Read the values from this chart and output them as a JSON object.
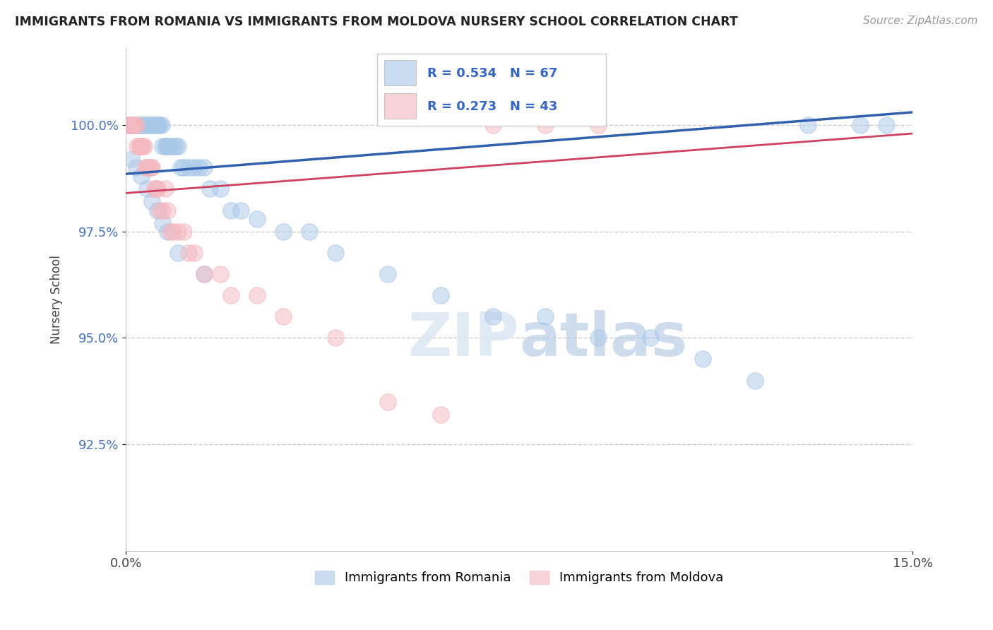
{
  "title": "IMMIGRANTS FROM ROMANIA VS IMMIGRANTS FROM MOLDOVA NURSERY SCHOOL CORRELATION CHART",
  "source": "Source: ZipAtlas.com",
  "ylabel": "Nursery School",
  "xlim": [
    0.0,
    15.0
  ],
  "ylim": [
    90.0,
    101.8
  ],
  "yticks": [
    92.5,
    95.0,
    97.5,
    100.0
  ],
  "ytick_labels": [
    "92.5%",
    "95.0%",
    "97.5%",
    "100.0%"
  ],
  "xticks": [
    0.0,
    15.0
  ],
  "xtick_labels": [
    "0.0%",
    "15.0%"
  ],
  "legend_r1": "R = 0.534",
  "legend_n1": "N = 67",
  "legend_r2": "R = 0.273",
  "legend_n2": "N = 43",
  "color_romania": "#a8c8e8",
  "color_moldova": "#f4b8c0",
  "color_line_romania": "#3060b0",
  "color_line_moldova": "#d04060",
  "romania_x": [
    0.05,
    0.08,
    0.1,
    0.12,
    0.15,
    0.18,
    0.2,
    0.22,
    0.25,
    0.28,
    0.3,
    0.35,
    0.38,
    0.4,
    0.42,
    0.45,
    0.48,
    0.5,
    0.55,
    0.58,
    0.6,
    0.62,
    0.65,
    0.68,
    0.7,
    0.75,
    0.78,
    0.8,
    0.85,
    0.9,
    0.95,
    1.0,
    1.05,
    1.1,
    1.2,
    1.3,
    1.4,
    1.5,
    1.6,
    1.8,
    2.0,
    2.2,
    2.5,
    3.0,
    3.5,
    4.0,
    5.0,
    6.0,
    7.0,
    8.0,
    9.0,
    10.0,
    11.0,
    12.0,
    13.0,
    14.0,
    14.5,
    0.1,
    0.2,
    0.3,
    0.4,
    0.5,
    0.6,
    0.7,
    0.8,
    1.0,
    1.5
  ],
  "romania_y": [
    100.0,
    100.0,
    100.0,
    100.0,
    100.0,
    100.0,
    100.0,
    100.0,
    100.0,
    100.0,
    100.0,
    100.0,
    100.0,
    100.0,
    100.0,
    100.0,
    100.0,
    100.0,
    100.0,
    100.0,
    100.0,
    100.0,
    100.0,
    100.0,
    99.5,
    99.5,
    99.5,
    99.5,
    99.5,
    99.5,
    99.5,
    99.5,
    99.0,
    99.0,
    99.0,
    99.0,
    99.0,
    99.0,
    98.5,
    98.5,
    98.0,
    98.0,
    97.8,
    97.5,
    97.5,
    97.0,
    96.5,
    96.0,
    95.5,
    95.5,
    95.0,
    95.0,
    94.5,
    94.0,
    100.0,
    100.0,
    100.0,
    99.2,
    99.0,
    98.8,
    98.5,
    98.2,
    98.0,
    97.7,
    97.5,
    97.0,
    96.5
  ],
  "moldova_x": [
    0.05,
    0.08,
    0.1,
    0.12,
    0.15,
    0.18,
    0.2,
    0.22,
    0.25,
    0.28,
    0.3,
    0.32,
    0.35,
    0.38,
    0.4,
    0.42,
    0.45,
    0.48,
    0.5,
    0.55,
    0.58,
    0.6,
    0.65,
    0.7,
    0.75,
    0.8,
    0.85,
    0.9,
    1.0,
    1.1,
    1.2,
    1.3,
    1.5,
    1.8,
    2.0,
    2.5,
    3.0,
    4.0,
    5.0,
    6.0,
    7.0,
    8.0,
    9.0
  ],
  "moldova_y": [
    100.0,
    100.0,
    100.0,
    100.0,
    100.0,
    100.0,
    100.0,
    99.5,
    99.5,
    99.5,
    99.5,
    99.5,
    99.5,
    99.0,
    99.0,
    99.0,
    99.0,
    99.0,
    99.0,
    98.5,
    98.5,
    98.5,
    98.0,
    98.0,
    98.5,
    98.0,
    97.5,
    97.5,
    97.5,
    97.5,
    97.0,
    97.0,
    96.5,
    96.5,
    96.0,
    96.0,
    95.5,
    95.0,
    93.5,
    93.2,
    100.0,
    100.0,
    100.0
  ],
  "rom_line_x0": 0.0,
  "rom_line_y0": 98.85,
  "rom_line_x1": 15.0,
  "rom_line_y1": 100.3,
  "mol_line_x0": 0.0,
  "mol_line_y0": 98.4,
  "mol_line_x1": 15.0,
  "mol_line_y1": 99.8
}
